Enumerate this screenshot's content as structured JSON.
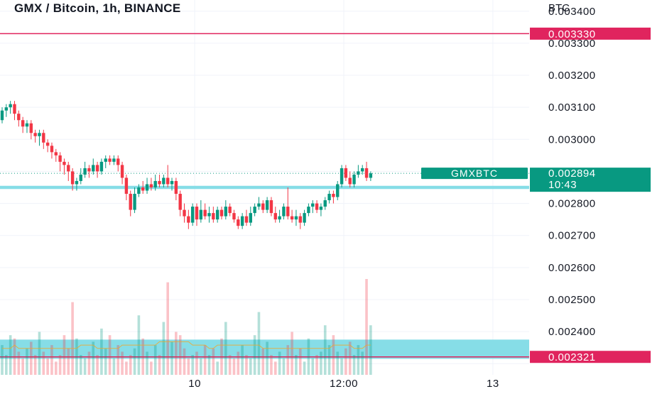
{
  "header": {
    "title": "GMX / Bitcoin, 1h, BINANCE"
  },
  "price_scale": {
    "unit": "BTC"
  },
  "colors": {
    "up": "#089981",
    "down": "#f23645",
    "zone": "#7fdbe6",
    "level_line": "#e0245e",
    "current_label": "#089981"
  },
  "chart_data": {
    "type": "candlestick",
    "title": "GMX / Bitcoin, 1h, BINANCE",
    "symbol": "GMXBTC",
    "y_unit": "BTC",
    "ylim": [
      0.002265,
      0.003435
    ],
    "y_ticks": [
      0.0034,
      0.0033,
      0.0032,
      0.0031,
      0.003,
      0.0029,
      0.0028,
      0.0027,
      0.0026,
      0.0025,
      0.0024,
      0.0023
    ],
    "y_tick_labels": [
      "0.003400",
      "0.003300",
      "0.003200",
      "0.003100",
      "0.003000",
      "",
      "0.002800",
      "0.002700",
      "0.002600",
      "0.002500",
      "0.002400",
      ""
    ],
    "x_ticks": [
      {
        "bar": 46.5,
        "label": "10"
      },
      {
        "bar": 82.5,
        "label": "12:00"
      },
      {
        "bar": 118.5,
        "label": "13"
      }
    ],
    "current": {
      "symbol": "GMXBTC",
      "price": "0.002894",
      "countdown": "10:43",
      "value": 0.002894
    },
    "levels": [
      {
        "price": 0.00333,
        "label": "0.003330"
      },
      {
        "price": 0.002321,
        "label": "0.002321"
      }
    ],
    "zones": [
      {
        "from": 0.002845,
        "to": 0.002855
      },
      {
        "from": 0.002315,
        "to": 0.002375
      }
    ],
    "candles": [
      [
        0.00306,
        0.00309,
        0.0031,
        0.00305
      ],
      [
        0.00309,
        0.0031,
        0.00311,
        0.00307
      ],
      [
        0.0031,
        0.00311,
        0.00312,
        0.00308
      ],
      [
        0.00311,
        0.00308,
        0.00312,
        0.00306
      ],
      [
        0.00308,
        0.00306,
        0.00309,
        0.00304
      ],
      [
        0.00306,
        0.00304,
        0.00307,
        0.00302
      ],
      [
        0.00304,
        0.00305,
        0.00306,
        0.00302
      ],
      [
        0.00305,
        0.00302,
        0.00306,
        0.003
      ],
      [
        0.00302,
        0.00301,
        0.00303,
        0.00299
      ],
      [
        0.00301,
        0.00302,
        0.00303,
        0.00298
      ],
      [
        0.00302,
        0.00299,
        0.00303,
        0.00297
      ],
      [
        0.00299,
        0.00298,
        0.003,
        0.00296
      ],
      [
        0.00298,
        0.00296,
        0.00299,
        0.00294
      ],
      [
        0.00296,
        0.00295,
        0.00297,
        0.00293
      ],
      [
        0.00295,
        0.00293,
        0.00296,
        0.0029
      ],
      [
        0.00293,
        0.00292,
        0.00294,
        0.00289
      ],
      [
        0.00292,
        0.0029,
        0.00293,
        0.00287
      ],
      [
        0.0029,
        0.00286,
        0.00291,
        0.00284
      ],
      [
        0.00286,
        0.00287,
        0.00288,
        0.00284
      ],
      [
        0.00287,
        0.00289,
        0.00291,
        0.00286
      ],
      [
        0.00289,
        0.00291,
        0.00293,
        0.00288
      ],
      [
        0.00291,
        0.0029,
        0.00292,
        0.00288
      ],
      [
        0.0029,
        0.00292,
        0.00294,
        0.00289
      ],
      [
        0.00292,
        0.0029,
        0.00293,
        0.00288
      ],
      [
        0.0029,
        0.00293,
        0.00294,
        0.00289
      ],
      [
        0.00293,
        0.00294,
        0.00295,
        0.00291
      ],
      [
        0.00294,
        0.00293,
        0.00295,
        0.00292
      ],
      [
        0.00293,
        0.00294,
        0.00295,
        0.00292
      ],
      [
        0.00294,
        0.00292,
        0.00295,
        0.0029
      ],
      [
        0.00292,
        0.00288,
        0.00293,
        0.00286
      ],
      [
        0.00288,
        0.00283,
        0.00289,
        0.00281
      ],
      [
        0.00283,
        0.00278,
        0.00284,
        0.00276
      ],
      [
        0.00278,
        0.00283,
        0.00285,
        0.00277
      ],
      [
        0.00283,
        0.00285,
        0.00286,
        0.00282
      ],
      [
        0.00285,
        0.00284,
        0.00287,
        0.00283
      ],
      [
        0.00284,
        0.00286,
        0.00288,
        0.00283
      ],
      [
        0.00286,
        0.00285,
        0.00288,
        0.00284
      ],
      [
        0.00285,
        0.00287,
        0.00289,
        0.00284
      ],
      [
        0.00287,
        0.00286,
        0.00289,
        0.00285
      ],
      [
        0.00286,
        0.00288,
        0.00289,
        0.00285
      ],
      [
        0.00288,
        0.00286,
        0.00292,
        0.00285
      ],
      [
        0.00286,
        0.00287,
        0.00288,
        0.00284
      ],
      [
        0.00287,
        0.00283,
        0.00288,
        0.00281
      ],
      [
        0.00283,
        0.00278,
        0.00284,
        0.00276
      ],
      [
        0.00278,
        0.00276,
        0.0028,
        0.00274
      ],
      [
        0.00276,
        0.00274,
        0.00278,
        0.00272
      ],
      [
        0.00274,
        0.00279,
        0.0028,
        0.00273
      ],
      [
        0.00279,
        0.00275,
        0.0028,
        0.00273
      ],
      [
        0.00275,
        0.00278,
        0.00281,
        0.00274
      ],
      [
        0.00278,
        0.00276,
        0.0028,
        0.00275
      ],
      [
        0.00276,
        0.00277,
        0.00279,
        0.00274
      ],
      [
        0.00277,
        0.00275,
        0.00279,
        0.00274
      ],
      [
        0.00275,
        0.00278,
        0.00279,
        0.00274
      ],
      [
        0.00278,
        0.00276,
        0.00279,
        0.00275
      ],
      [
        0.00276,
        0.00279,
        0.00281,
        0.00275
      ],
      [
        0.00279,
        0.00277,
        0.0028,
        0.00276
      ],
      [
        0.00277,
        0.00275,
        0.00278,
        0.00274
      ],
      [
        0.00275,
        0.00273,
        0.00276,
        0.00272
      ],
      [
        0.00273,
        0.00276,
        0.00277,
        0.00272
      ],
      [
        0.00276,
        0.00274,
        0.00278,
        0.00273
      ],
      [
        0.00274,
        0.00277,
        0.00279,
        0.00273
      ],
      [
        0.00277,
        0.00279,
        0.0028,
        0.00276
      ],
      [
        0.00279,
        0.0028,
        0.00282,
        0.00278
      ],
      [
        0.0028,
        0.00278,
        0.00281,
        0.00277
      ],
      [
        0.00278,
        0.00281,
        0.00282,
        0.00277
      ],
      [
        0.00281,
        0.00277,
        0.00282,
        0.00276
      ],
      [
        0.00277,
        0.00275,
        0.00279,
        0.00274
      ],
      [
        0.00275,
        0.00276,
        0.00278,
        0.00274
      ],
      [
        0.00276,
        0.00279,
        0.0028,
        0.00275
      ],
      [
        0.00279,
        0.00276,
        0.00285,
        0.00275
      ],
      [
        0.00276,
        0.00275,
        0.00278,
        0.00274
      ],
      [
        0.00275,
        0.00276,
        0.00278,
        0.00273
      ],
      [
        0.00276,
        0.00274,
        0.00277,
        0.00272
      ],
      [
        0.00274,
        0.00277,
        0.00278,
        0.00273
      ],
      [
        0.00277,
        0.00279,
        0.0028,
        0.00276
      ],
      [
        0.00279,
        0.0028,
        0.00281,
        0.00277
      ],
      [
        0.0028,
        0.00278,
        0.00281,
        0.00277
      ],
      [
        0.00278,
        0.00279,
        0.0028,
        0.00276
      ],
      [
        0.00279,
        0.00281,
        0.00282,
        0.00278
      ],
      [
        0.00281,
        0.00283,
        0.00284,
        0.0028
      ],
      [
        0.00283,
        0.00282,
        0.00284,
        0.0028
      ],
      [
        0.00282,
        0.00286,
        0.00287,
        0.00281
      ],
      [
        0.00286,
        0.00291,
        0.00292,
        0.00285
      ],
      [
        0.00291,
        0.00288,
        0.00292,
        0.00287
      ],
      [
        0.00288,
        0.00286,
        0.0029,
        0.00285
      ],
      [
        0.00286,
        0.00289,
        0.0029,
        0.00285
      ],
      [
        0.00289,
        0.0029,
        0.00292,
        0.00288
      ],
      [
        0.0029,
        0.00291,
        0.00292,
        0.00289
      ],
      [
        0.00291,
        0.00288,
        0.00293,
        0.00287
      ],
      [
        0.00288,
        0.002894,
        0.0029,
        0.00287
      ]
    ],
    "volume": [
      9,
      6,
      12,
      11,
      7,
      5,
      8,
      10,
      6,
      13,
      7,
      5,
      9,
      4,
      6,
      12,
      8,
      22,
      11,
      6,
      5,
      7,
      10,
      6,
      14,
      8,
      12,
      5,
      9,
      7,
      4,
      6,
      8,
      18,
      11,
      7,
      4,
      9,
      6,
      16,
      28,
      10,
      13,
      12,
      8,
      5,
      6,
      7,
      5,
      9,
      6,
      8,
      4,
      11,
      16,
      6,
      5,
      7,
      9,
      6,
      5,
      12,
      19,
      8,
      10,
      6,
      4,
      7,
      5,
      9,
      13,
      6,
      8,
      4,
      11,
      5,
      6,
      7,
      15,
      9,
      12,
      7,
      5,
      8,
      10,
      6,
      9,
      7,
      29,
      15
    ],
    "volume_ma": [
      8,
      8,
      8,
      9,
      8,
      8,
      8,
      8,
      8,
      8,
      8,
      8,
      8,
      8,
      8,
      8,
      8,
      8,
      8,
      9,
      9,
      9,
      9,
      8,
      8,
      8,
      8,
      8,
      8,
      9,
      9,
      9,
      9,
      9,
      9,
      9,
      9,
      9,
      10,
      10,
      10,
      10,
      10,
      10,
      10,
      10,
      9,
      9,
      9,
      9,
      8,
      8,
      9,
      9,
      9,
      9,
      9,
      9,
      9,
      9,
      9,
      9,
      9,
      8,
      8,
      8,
      8,
      8,
      8,
      8,
      8,
      8,
      8,
      8,
      8,
      8,
      8,
      8,
      8,
      8,
      9,
      9,
      9,
      9,
      9,
      8,
      8,
      8,
      9,
      9
    ]
  }
}
